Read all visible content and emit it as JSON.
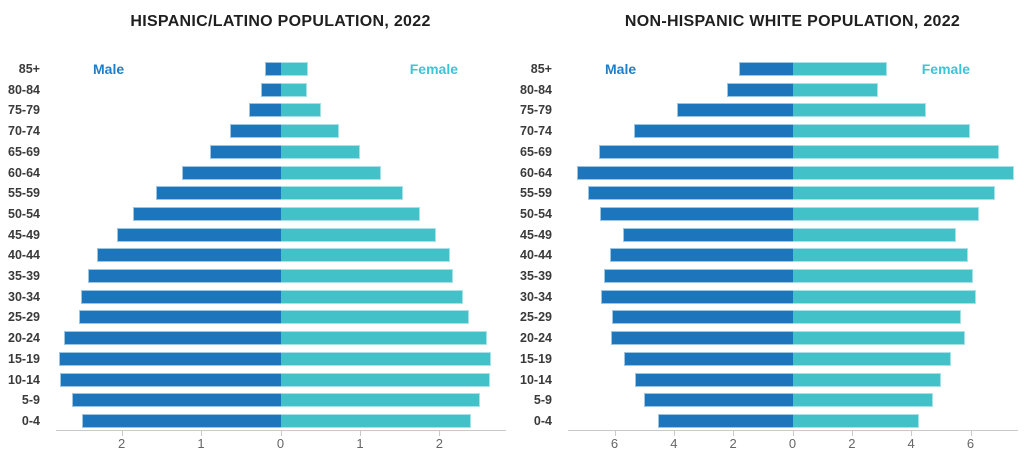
{
  "page": {
    "background": "#ffffff"
  },
  "colors": {
    "male_bar": "#1d76bb",
    "male_bar_border": "#9cc5e4",
    "female_bar": "#43c1c9",
    "female_bar_border": "#a9e2e6",
    "male_label": "#1e7ec9",
    "female_label": "#3fc3d8",
    "title": "#1f1f1f",
    "age_label": "#3a3a3a",
    "tick_label": "#666666",
    "axis_line": "#c9c9c9"
  },
  "chart_data": [
    {
      "type": "bar",
      "subtype": "population-pyramid",
      "title": "HISPANIC/LATINO POPULATION, 2022",
      "xlabel": "",
      "ylabel": "",
      "grid": false,
      "legend_position": "top-inside",
      "xlim": [
        -2.8,
        2.8
      ],
      "age_groups": [
        "85+",
        "80-84",
        "75-79",
        "70-74",
        "65-69",
        "60-64",
        "55-59",
        "50-54",
        "45-49",
        "40-44",
        "35-39",
        "30-34",
        "25-29",
        "20-24",
        "15-19",
        "10-14",
        "5-9",
        "0-4"
      ],
      "series": [
        {
          "name": "Male",
          "side": "left",
          "values": [
            0.19,
            0.24,
            0.4,
            0.63,
            0.89,
            1.24,
            1.57,
            1.86,
            2.06,
            2.31,
            2.42,
            2.51,
            2.53,
            2.73,
            2.79,
            2.77,
            2.62,
            2.5
          ]
        },
        {
          "name": "Female",
          "side": "right",
          "values": [
            0.35,
            0.33,
            0.51,
            0.73,
            1.0,
            1.27,
            1.54,
            1.76,
            1.96,
            2.13,
            2.17,
            2.3,
            2.37,
            2.6,
            2.65,
            2.64,
            2.51,
            2.4
          ]
        }
      ],
      "x_ticks": [
        {
          "value": -2,
          "label": "2"
        },
        {
          "value": -1,
          "label": "1"
        },
        {
          "value": 0,
          "label": "0"
        },
        {
          "value": 1,
          "label": "1"
        },
        {
          "value": 2,
          "label": "2"
        }
      ]
    },
    {
      "type": "bar",
      "subtype": "population-pyramid",
      "title": "NON-HISPANIC WHITE POPULATION, 2022",
      "xlabel": "",
      "ylabel": "",
      "grid": false,
      "legend_position": "top-inside",
      "xlim": [
        -7.5,
        7.5
      ],
      "age_groups": [
        "85+",
        "80-84",
        "75-79",
        "70-74",
        "65-69",
        "60-64",
        "55-59",
        "50-54",
        "45-49",
        "40-44",
        "35-39",
        "30-34",
        "25-29",
        "20-24",
        "15-19",
        "10-14",
        "5-9",
        "0-4"
      ],
      "series": [
        {
          "name": "Male",
          "side": "left",
          "values": [
            1.8,
            2.22,
            3.88,
            5.35,
            6.51,
            7.27,
            6.88,
            6.49,
            5.7,
            6.16,
            6.35,
            6.46,
            6.07,
            6.11,
            5.69,
            5.3,
            5.01,
            4.52
          ]
        },
        {
          "name": "Female",
          "side": "right",
          "values": [
            3.2,
            2.88,
            4.5,
            5.97,
            6.95,
            7.45,
            6.83,
            6.28,
            5.52,
            5.92,
            6.09,
            6.19,
            5.68,
            5.82,
            5.35,
            5.0,
            4.74,
            4.27
          ]
        }
      ],
      "x_ticks": [
        {
          "value": -6,
          "label": "6"
        },
        {
          "value": -4,
          "label": "4"
        },
        {
          "value": -2,
          "label": "2"
        },
        {
          "value": 0,
          "label": "0"
        },
        {
          "value": 2,
          "label": "2"
        },
        {
          "value": 4,
          "label": "4"
        },
        {
          "value": 6,
          "label": "6"
        }
      ]
    }
  ]
}
